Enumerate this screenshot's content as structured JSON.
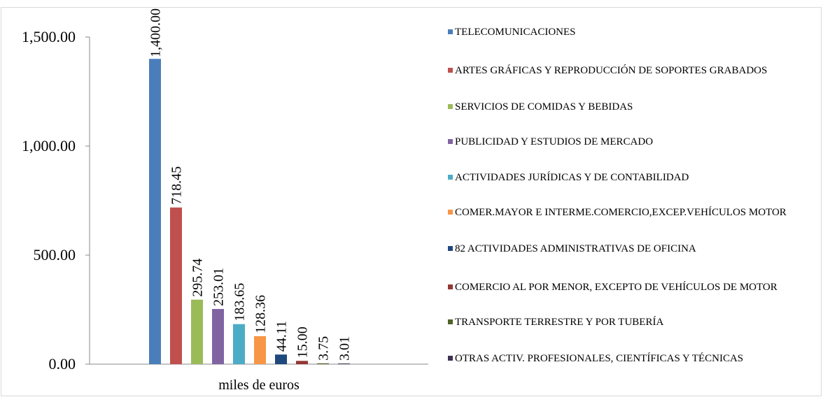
{
  "chart_data": {
    "type": "bar",
    "categories": [
      "miles de euros"
    ],
    "series": [
      {
        "name": "TELECOMUNICACIONES",
        "color": "#4a7ebb",
        "values": [
          1400.0
        ],
        "value_labels": [
          "1,400.00"
        ]
      },
      {
        "name": "ARTES GRÁFICAS Y REPRODUCCIÓN DE SOPORTES GRABADOS",
        "color": "#c0504d",
        "values": [
          718.45
        ],
        "value_labels": [
          "718.45"
        ]
      },
      {
        "name": "SERVICIOS DE COMIDAS Y BEBIDAS",
        "color": "#9bbb59",
        "values": [
          295.74
        ],
        "value_labels": [
          "295.74"
        ]
      },
      {
        "name": "PUBLICIDAD Y ESTUDIOS DE MERCADO",
        "color": "#8064a2",
        "values": [
          253.01
        ],
        "value_labels": [
          "253.01"
        ]
      },
      {
        "name": "ACTIVIDADES JURÍDICAS Y DE CONTABILIDAD",
        "color": "#4bacc6",
        "values": [
          183.65
        ],
        "value_labels": [
          "183.65"
        ]
      },
      {
        "name": "COMER.MAYOR E INTERME.COMERCIO,EXCEP.VEHÍCULOS MOTOR",
        "color": "#f79646",
        "values": [
          128.36
        ],
        "value_labels": [
          "128.36"
        ]
      },
      {
        "name": "82 ACTIVIDADES ADMINISTRATIVAS DE OFICINA",
        "color": "#1f497d",
        "values": [
          44.11
        ],
        "value_labels": [
          "44.11"
        ]
      },
      {
        "name": "COMERCIO AL POR MENOR, EXCEPTO DE VEHÍCULOS DE MOTOR",
        "color": "#943634",
        "values": [
          15.0
        ],
        "value_labels": [
          "15.00"
        ]
      },
      {
        "name": "TRANSPORTE TERRESTRE Y POR TUBERÍA",
        "color": "#4f6228",
        "values": [
          3.75
        ],
        "value_labels": [
          "3.75"
        ]
      },
      {
        "name": "OTRAS ACTIV. PROFESIONALES, CIENTÍFICAS Y TÉCNICAS",
        "color": "#3f3151",
        "values": [
          3.01
        ],
        "value_labels": [
          "3.01"
        ]
      }
    ],
    "ylim": [
      0,
      1500
    ],
    "yticks": [
      {
        "value": 0,
        "label": "0.00"
      },
      {
        "value": 500,
        "label": "500.00"
      },
      {
        "value": 1000,
        "label": "1,000.00"
      },
      {
        "value": 1500,
        "label": "1,500.00"
      }
    ],
    "legend": "right"
  }
}
